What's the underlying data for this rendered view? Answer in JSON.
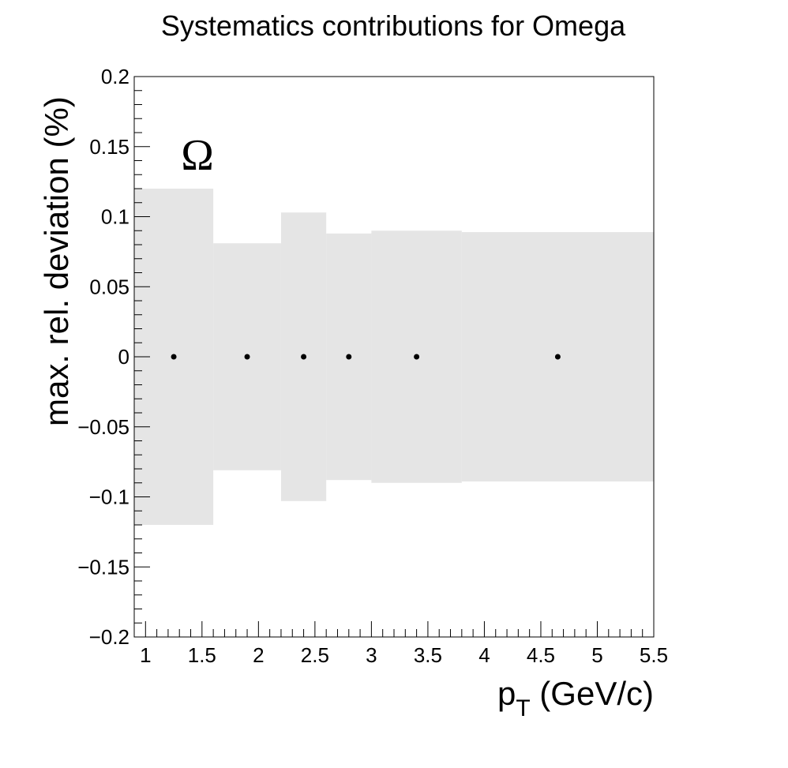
{
  "chart_data": {
    "type": "scatter",
    "title": "Systematics contributions for Omega",
    "xlabel": "p",
    "xlabel_sub": "T",
    "xlabel_unit": " (GeV/c)",
    "ylabel": "max. rel. deviation (%)",
    "annotation": "Ω",
    "xlim": [
      0.9,
      5.5
    ],
    "ylim": [
      -0.2,
      0.2
    ],
    "x_ticks": [
      1,
      1.5,
      2,
      2.5,
      3,
      3.5,
      4,
      4.5,
      5,
      5.5
    ],
    "x_tick_labels": [
      "1",
      "1.5",
      "2",
      "2.5",
      "3",
      "3.5",
      "4",
      "4.5",
      "5",
      "5.5"
    ],
    "y_ticks": [
      -0.2,
      -0.15,
      -0.1,
      -0.05,
      0,
      0.05,
      0.1,
      0.15,
      0.2
    ],
    "y_tick_labels": [
      "−0.2",
      "−0.15",
      "−0.1",
      "−0.05",
      "0",
      "0.05",
      "0.1",
      "0.15",
      "0.2"
    ],
    "band_color": "#e5e5e5",
    "point_color": "#000000",
    "bins": [
      {
        "x_low": 0.9,
        "x_high": 1.6,
        "half_width": 0.12
      },
      {
        "x_low": 1.6,
        "x_high": 2.2,
        "half_width": 0.081
      },
      {
        "x_low": 2.2,
        "x_high": 2.6,
        "half_width": 0.103
      },
      {
        "x_low": 2.6,
        "x_high": 3.0,
        "half_width": 0.088
      },
      {
        "x_low": 3.0,
        "x_high": 3.8,
        "half_width": 0.09
      },
      {
        "x_low": 3.8,
        "x_high": 5.5,
        "half_width": 0.089
      }
    ],
    "points": [
      {
        "x": 1.25,
        "y": 0
      },
      {
        "x": 1.9,
        "y": 0
      },
      {
        "x": 2.4,
        "y": 0
      },
      {
        "x": 2.8,
        "y": 0
      },
      {
        "x": 3.4,
        "y": 0
      },
      {
        "x": 4.65,
        "y": 0
      }
    ]
  }
}
